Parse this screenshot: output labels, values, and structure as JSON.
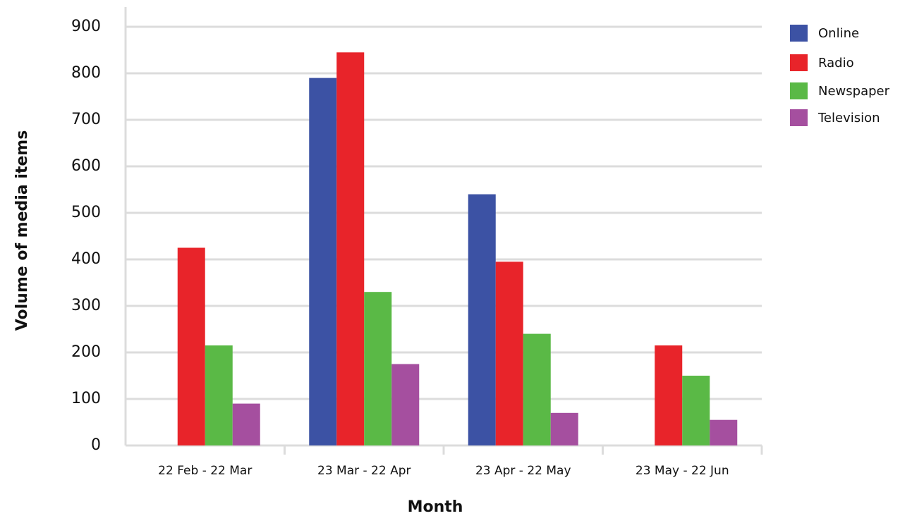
{
  "chart_data": {
    "type": "bar",
    "x_label": "Month",
    "y_label": "Volume of media items",
    "categories": [
      "22 Feb - 22 Mar",
      "23 Mar - 22 Apr",
      "23 Apr - 22 May",
      "23 May - 22 Jun"
    ],
    "series": [
      {
        "name": "Online",
        "color": "#3c52a4",
        "values": [
          0,
          790,
          540,
          0
        ]
      },
      {
        "name": "Radio",
        "color": "#e8242a",
        "values": [
          425,
          845,
          395,
          215
        ]
      },
      {
        "name": "Newspaper",
        "color": "#5ab946",
        "values": [
          215,
          330,
          240,
          150
        ]
      },
      {
        "name": "Television",
        "color": "#a54f9f",
        "values": [
          90,
          175,
          70,
          55
        ]
      }
    ],
    "ylim": [
      0,
      900
    ],
    "yticks": [
      0,
      100,
      200,
      300,
      400,
      500,
      600,
      700,
      800,
      900
    ],
    "grid": true,
    "legend": "top-right"
  }
}
